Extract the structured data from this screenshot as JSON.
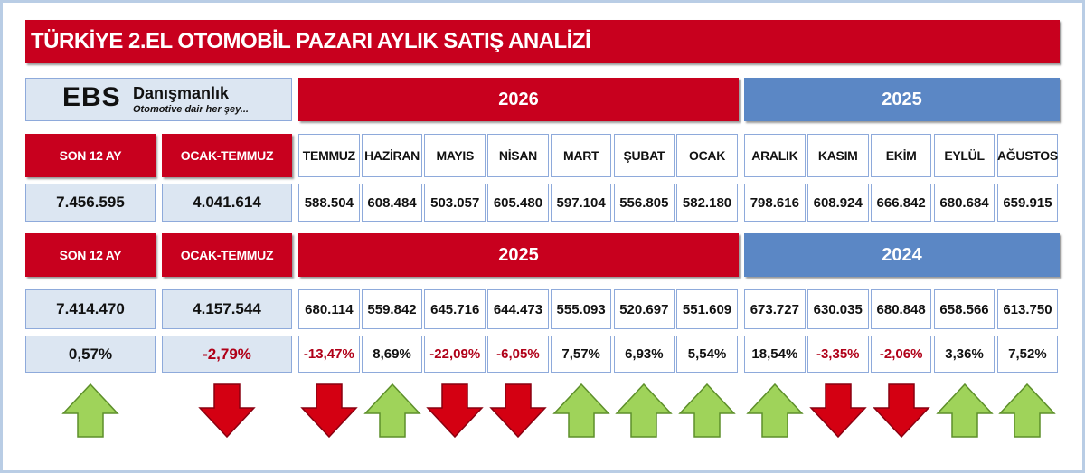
{
  "title": "TÜRKİYE 2.EL OTOMOBİL PAZARI AYLIK SATIŞ ANALİZİ",
  "logo": {
    "name": "EBS",
    "suffix": "Danışmanlık",
    "tagline": "Otomotive dair her şey..."
  },
  "months": [
    "TEMMUZ",
    "HAZİRAN",
    "MAYIS",
    "NİSAN",
    "MART",
    "ŞUBAT",
    "OCAK",
    "ARALIK",
    "KASIM",
    "EKİM",
    "EYLÜL",
    "AĞUSTOS"
  ],
  "block1": {
    "summary_headers": [
      "SON 12 AY",
      "OCAK-TEMMUZ"
    ],
    "years": [
      "2026",
      "2025"
    ],
    "summary": [
      "7.456.595",
      "4.041.614"
    ],
    "values": [
      "588.504",
      "608.484",
      "503.057",
      "605.480",
      "597.104",
      "556.805",
      "582.180",
      "798.616",
      "608.924",
      "666.842",
      "680.684",
      "659.915"
    ]
  },
  "block2": {
    "summary_headers": [
      "SON 12 AY",
      "OCAK-TEMMUZ"
    ],
    "years": [
      "2025",
      "2024"
    ],
    "summary": [
      "7.414.470",
      "4.157.544"
    ],
    "values": [
      "680.114",
      "559.842",
      "645.716",
      "644.473",
      "555.093",
      "520.697",
      "551.609",
      "673.727",
      "630.035",
      "680.848",
      "658.566",
      "613.750"
    ],
    "summary_changes": [
      "0,57%",
      "-2,79%"
    ],
    "changes": [
      "-13,47%",
      "8,69%",
      "-22,09%",
      "-6,05%",
      "7,57%",
      "6,93%",
      "5,54%",
      "18,54%",
      "-3,35%",
      "-2,06%",
      "3,36%",
      "7,52%"
    ]
  }
}
